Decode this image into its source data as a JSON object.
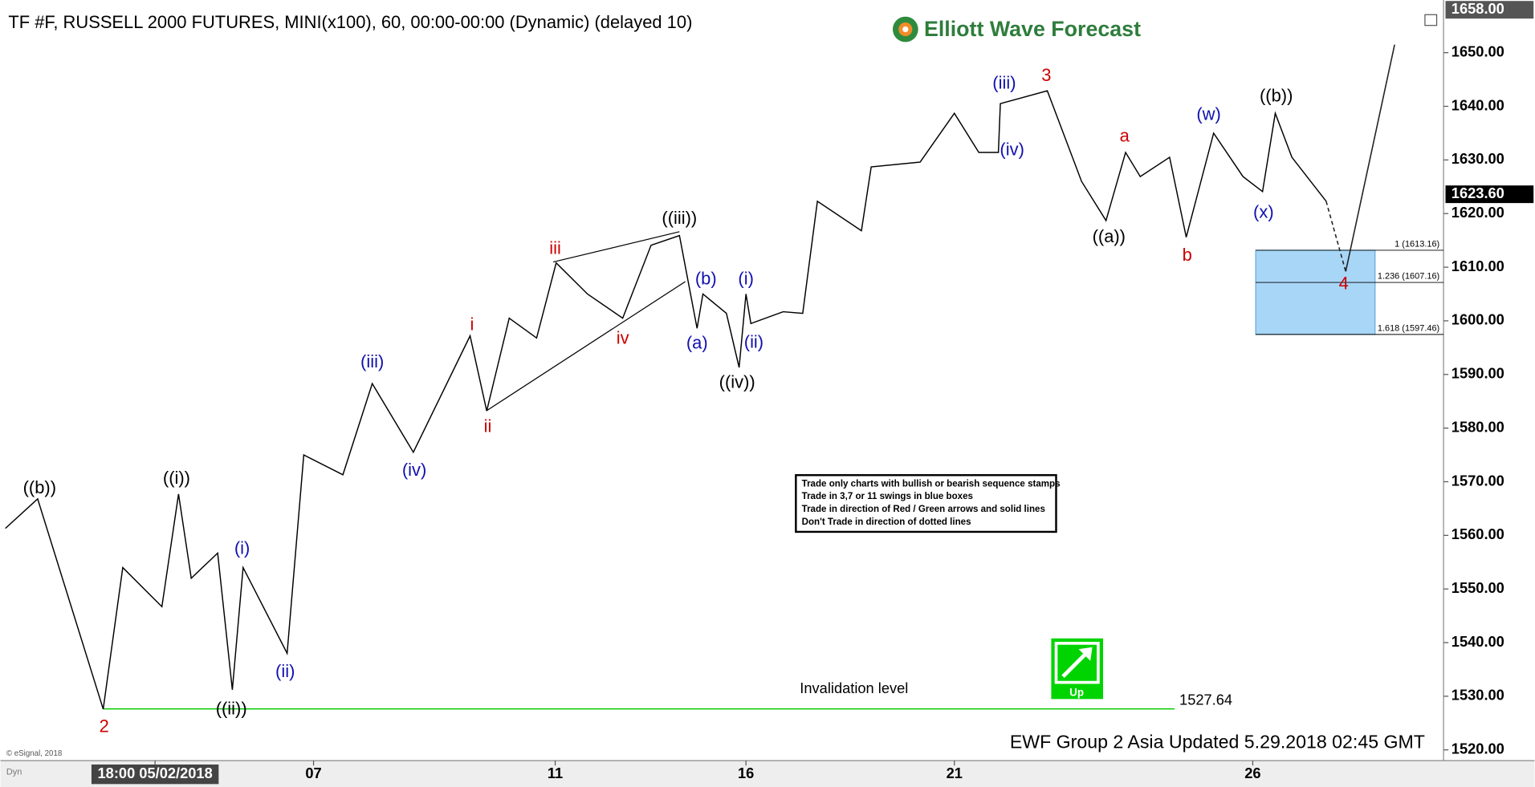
{
  "chart_data": {
    "type": "line",
    "title": "TF #F, RUSSELL 2000 FUTURES, MINI(x100), 60, 00:00-00:00 (Dynamic) (delayed 10)",
    "logo": "Elliott Wave Forecast",
    "footer": "EWF Group 2 Asia Updated 5.29.2018 02:45 GMT",
    "copyright": "© eSignal, 2018",
    "corner_label": "Dyn",
    "stamp": "Up",
    "rules": [
      "Trade only charts with bullish or bearish sequence stamps",
      "Trade in 3,7 or 11 swings in blue boxes",
      "Trade in direction of Red / Green arrows and solid lines",
      "Don't Trade in direction of dotted lines"
    ],
    "color": "#000000",
    "x": [
      1,
      7.6,
      21,
      25,
      33,
      36.4,
      39,
      44.4,
      47.4,
      49.6,
      58.6,
      62,
      70,
      76,
      84.4,
      96,
      99.4,
      104,
      109.6,
      113.6,
      120,
      127.2,
      133,
      138.8,
      142.4,
      143.6,
      148.4,
      151,
      152.4,
      153.4,
      160,
      164,
      167,
      176,
      178,
      188,
      195,
      200,
      204,
      204.4,
      214,
      221,
      226,
      230,
      233,
      239,
      242.4,
      248,
      254,
      258,
      260.6,
      264,
      271
    ],
    "values": [
      1561.3,
      1566.8,
      1527.6,
      1554,
      1546.7,
      1567.7,
      1552,
      1556.7,
      1531.2,
      1554,
      1538,
      1575,
      1571.3,
      1588.3,
      1575.5,
      1597.2,
      1583.2,
      1600.5,
      1596.8,
      1610.8,
      1605,
      1600.5,
      1614.1,
      1615.9,
      1598.6,
      1605,
      1601.4,
      1591.3,
      1605,
      1599.5,
      1601.7,
      1601.4,
      1622.3,
      1616.8,
      1628.7,
      1629.6,
      1638.7,
      1631.4,
      1631.4,
      1640.5,
      1642.9,
      1626,
      1618.7,
      1631.4,
      1626.9,
      1630.5,
      1615.6,
      1635,
      1626.9,
      1624.1,
      1638.7,
      1630.5,
      1622.3
    ],
    "projection": {
      "x": [
        271,
        275,
        285
      ],
      "values": [
        1622.3,
        1609.2,
        1651.5
      ],
      "color": "#222222"
    },
    "xlim": [
      0,
      295
    ],
    "ylim": [
      1518,
      1658
    ],
    "xticks": [
      {
        "value": 31.6,
        "label": "18:00 05/02/2018"
      },
      {
        "value": 64,
        "label": "07"
      },
      {
        "value": 113.4,
        "label": "11"
      },
      {
        "value": 152.4,
        "label": "16"
      },
      {
        "value": 195,
        "label": "21"
      },
      {
        "value": 256,
        "label": "26"
      }
    ],
    "yticks": [
      {
        "value": 1520,
        "label": "1520.00"
      },
      {
        "value": 1530,
        "label": "1530.00"
      },
      {
        "value": 1540,
        "label": "1540.00"
      },
      {
        "value": 1550,
        "label": "1550.00"
      },
      {
        "value": 1560,
        "label": "1560.00"
      },
      {
        "value": 1570,
        "label": "1570.00"
      },
      {
        "value": 1580,
        "label": "1580.00"
      },
      {
        "value": 1590,
        "label": "1590.00"
      },
      {
        "value": 1600,
        "label": "1600.00"
      },
      {
        "value": 1610,
        "label": "1610.00"
      },
      {
        "value": 1620,
        "label": "1620.00"
      },
      {
        "value": 1630,
        "label": "1630.00"
      },
      {
        "value": 1640,
        "label": "1640.00"
      },
      {
        "value": 1650,
        "label": "1650.00"
      }
    ],
    "top_price": {
      "value": 1658,
      "label": "1658.00"
    },
    "last_price": {
      "value": 1623.6,
      "label": "1623.60"
    },
    "invalidation": {
      "label": "Invalidation level",
      "value": 1527.64,
      "value_label": "1527.64",
      "x": [
        21,
        240
      ],
      "color": "#00cc00"
    },
    "fib_zone": {
      "x": [
        256.6,
        281
      ],
      "color": "#a8d6f7",
      "levels": [
        {
          "value": 1613.16,
          "label": "1 (1613.16)"
        },
        {
          "value": 1607.16,
          "label": "1.236 (1607.16)"
        },
        {
          "value": 1597.46,
          "label": "1.618 (1597.46)"
        }
      ]
    },
    "annotations": [
      {
        "text": "((b))",
        "color": "#000000"
      },
      {
        "text": "((i))",
        "color": "#000000"
      },
      {
        "text": "((ii))",
        "color": "#000000"
      },
      {
        "text": "2",
        "color": "#cc0000"
      },
      {
        "text": "(i)",
        "color": "#1010b0"
      },
      {
        "text": "(ii)",
        "color": "#1010b0"
      },
      {
        "text": "(iii)",
        "color": "#1010b0"
      },
      {
        "text": "(iv)",
        "color": "#1010b0"
      },
      {
        "text": "i",
        "color": "#cc0000"
      },
      {
        "text": "ii",
        "color": "#cc0000"
      },
      {
        "text": "iii",
        "color": "#cc0000"
      },
      {
        "text": "iv",
        "color": "#cc0000"
      },
      {
        "text": "((iii))",
        "color": "#000000"
      },
      {
        "text": "(b)",
        "color": "#1010b0"
      },
      {
        "text": "(a)",
        "color": "#1010b0"
      },
      {
        "text": "(i)",
        "color": "#1010b0"
      },
      {
        "text": "(ii)",
        "color": "#1010b0"
      },
      {
        "text": "((iv))",
        "color": "#000000"
      },
      {
        "text": "(iii)",
        "color": "#1010b0"
      },
      {
        "text": "3",
        "color": "#cc0000"
      },
      {
        "text": "(iv)",
        "color": "#1010b0"
      },
      {
        "text": "a",
        "color": "#cc0000"
      },
      {
        "text": "((a))",
        "color": "#000000"
      },
      {
        "text": "b",
        "color": "#cc0000"
      },
      {
        "text": "(w)",
        "color": "#1010b0"
      },
      {
        "text": "((b))",
        "color": "#000000"
      },
      {
        "text": "(x)",
        "color": "#1010b0"
      },
      {
        "text": "4",
        "color": "#cc0000"
      }
    ]
  }
}
